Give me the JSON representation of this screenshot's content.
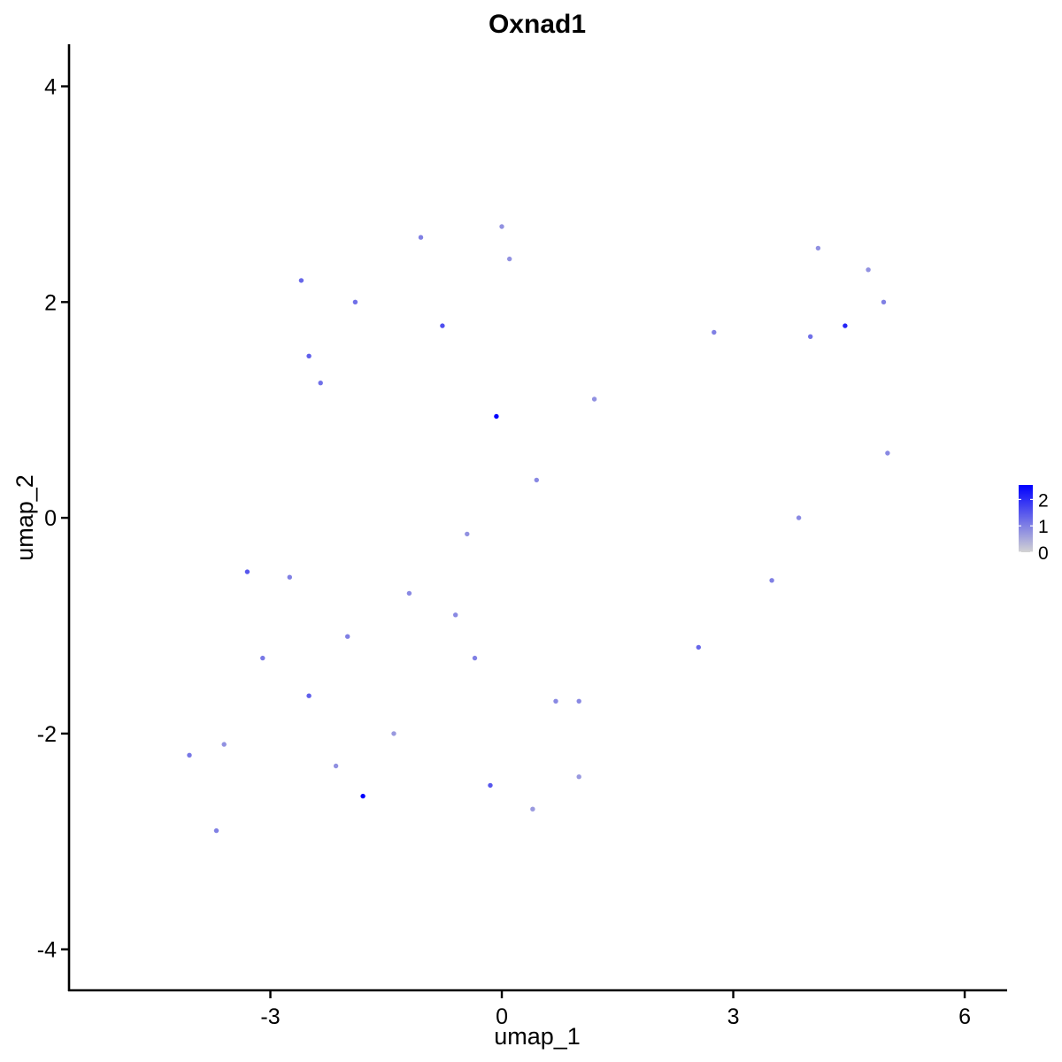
{
  "chart_data": {
    "type": "scatter",
    "title": "Oxnad1",
    "xlabel": "umap_1",
    "ylabel": "umap_2",
    "xlim": [
      -5.61,
      6.55
    ],
    "ylim": [
      -4.38,
      4.39
    ],
    "x_ticks": [
      {
        "value": -3,
        "label": "-3"
      },
      {
        "value": 0,
        "label": "0"
      },
      {
        "value": 3,
        "label": "3"
      },
      {
        "value": 6,
        "label": "6"
      }
    ],
    "y_ticks": [
      {
        "value": -4,
        "label": "-4"
      },
      {
        "value": -2,
        "label": "-2"
      },
      {
        "value": 0,
        "label": "0"
      },
      {
        "value": 2,
        "label": "2"
      },
      {
        "value": 4,
        "label": "4"
      }
    ],
    "grid": false,
    "legend_position": "right",
    "color_scale": {
      "low_color": "#d3d3d3",
      "high_color": "#0000ff",
      "min": 0,
      "max": 2.55,
      "ticks": [
        {
          "value": 0,
          "label": "0"
        },
        {
          "value": 1,
          "label": "1"
        },
        {
          "value": 2,
          "label": "2"
        }
      ]
    },
    "points": [
      {
        "x": -0.07,
        "y": 0.94,
        "value": 2.55
      },
      {
        "x": -1.8,
        "y": -2.58,
        "value": 2.55
      },
      {
        "x": 4.45,
        "y": 1.78,
        "value": 2.1
      },
      {
        "x": -0.77,
        "y": 1.78,
        "value": 1.6
      },
      {
        "x": -2.5,
        "y": 1.5,
        "value": 1.4
      },
      {
        "x": -2.35,
        "y": 1.25,
        "value": 1.2
      },
      {
        "x": -2.6,
        "y": 2.2,
        "value": 1.3
      },
      {
        "x": -1.9,
        "y": 2.0,
        "value": 1.2
      },
      {
        "x": -3.3,
        "y": -0.5,
        "value": 1.5
      },
      {
        "x": -2.5,
        "y": -1.65,
        "value": 1.4
      },
      {
        "x": -0.15,
        "y": -2.48,
        "value": 1.5
      },
      {
        "x": 2.55,
        "y": -1.2,
        "value": 1.3
      },
      {
        "x": 4.0,
        "y": 1.68,
        "value": 1.2
      },
      {
        "x": -3.1,
        "y": -1.3,
        "value": 1.1
      },
      {
        "x": -2.75,
        "y": -0.55,
        "value": 1.0
      },
      {
        "x": -4.05,
        "y": -2.2,
        "value": 1.1
      },
      {
        "x": -3.7,
        "y": -2.9,
        "value": 1.0
      },
      {
        "x": -2.0,
        "y": -1.1,
        "value": 1.0
      },
      {
        "x": -1.2,
        "y": -0.7,
        "value": 0.9
      },
      {
        "x": -0.6,
        "y": -0.9,
        "value": 0.9
      },
      {
        "x": -0.35,
        "y": -1.3,
        "value": 1.0
      },
      {
        "x": 0.7,
        "y": -1.7,
        "value": 0.9
      },
      {
        "x": 1.0,
        "y": -1.7,
        "value": 0.9
      },
      {
        "x": 0.45,
        "y": 0.35,
        "value": 0.9
      },
      {
        "x": 1.2,
        "y": 1.1,
        "value": 0.8
      },
      {
        "x": 2.75,
        "y": 1.72,
        "value": 1.0
      },
      {
        "x": 4.95,
        "y": 2.0,
        "value": 1.0
      },
      {
        "x": 5.0,
        "y": 0.6,
        "value": 0.9
      },
      {
        "x": 3.5,
        "y": -0.58,
        "value": 1.0
      },
      {
        "x": 3.85,
        "y": -0.0,
        "value": 0.9
      },
      {
        "x": -1.05,
        "y": 2.6,
        "value": 1.0
      },
      {
        "x": 0.1,
        "y": 2.4,
        "value": 0.8
      },
      {
        "x": 0.0,
        "y": 2.7,
        "value": 0.8
      },
      {
        "x": 4.75,
        "y": 2.3,
        "value": 0.8
      },
      {
        "x": 4.1,
        "y": 2.5,
        "value": 0.8
      },
      {
        "x": -0.45,
        "y": -0.15,
        "value": 0.8
      },
      {
        "x": -3.6,
        "y": -2.1,
        "value": 0.8
      },
      {
        "x": -2.15,
        "y": -2.3,
        "value": 0.8
      },
      {
        "x": -1.4,
        "y": -2.0,
        "value": 0.7
      },
      {
        "x": 0.4,
        "y": -2.7,
        "value": 0.7
      },
      {
        "x": 1.0,
        "y": -2.4,
        "value": 0.7
      }
    ]
  }
}
